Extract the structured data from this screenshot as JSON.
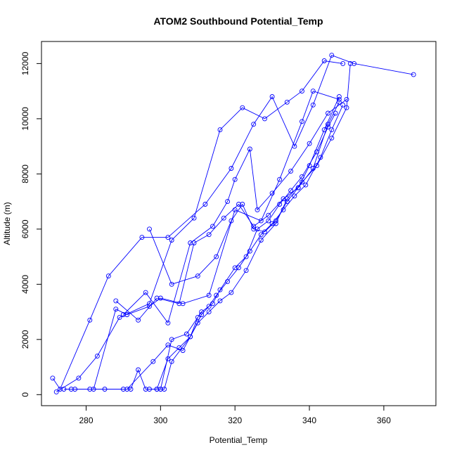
{
  "chart_data": {
    "type": "line",
    "title": "ATOM2 Southbound Potential_Temp",
    "xlabel": "Potential_Temp",
    "ylabel": "Altitude (m)",
    "xlim": [
      268,
      374
    ],
    "ylim": [
      -400,
      12800
    ],
    "xticks": [
      280,
      300,
      320,
      340,
      360
    ],
    "yticks": [
      0,
      2000,
      4000,
      6000,
      8000,
      10000,
      12000
    ],
    "xtick_labels": [
      "280",
      "300",
      "320",
      "340",
      "360"
    ],
    "ytick_labels": [
      "0",
      "2000",
      "4000",
      "6000",
      "8000",
      "10000",
      "12000"
    ],
    "grid": false,
    "legend": "none",
    "series": [
      {
        "color": "#0000ff",
        "marker": "open-circle",
        "x": [
          271,
          273,
          281,
          286,
          295,
          302,
          312,
          319,
          325,
          330,
          336,
          341,
          346,
          352,
          368
        ],
        "y": [
          600,
          200,
          2700,
          4300,
          5700,
          5700,
          6900,
          8200,
          9800,
          10800,
          9000,
          10500,
          12300,
          12000,
          11600
        ]
      },
      {
        "color": "#0000ff",
        "marker": "open-circle",
        "x": [
          272,
          278,
          283,
          289,
          297,
          303,
          309,
          316,
          322,
          328,
          334,
          338,
          344,
          349
        ],
        "y": [
          100,
          600,
          1400,
          2800,
          3300,
          5600,
          6400,
          9600,
          10400,
          10000,
          10600,
          11000,
          12100,
          12000
        ]
      },
      {
        "color": "#0000ff",
        "marker": "open-circle",
        "x": [
          274,
          277,
          282,
          288,
          291,
          297,
          300,
          306,
          313,
          320,
          327,
          332,
          338,
          341,
          348
        ],
        "y": [
          200,
          200,
          200,
          3100,
          2900,
          3200,
          3500,
          3300,
          3600,
          6700,
          6300,
          7800,
          9900,
          11000,
          10700
        ]
      },
      {
        "color": "#0000ff",
        "marker": "open-circle",
        "x": [
          276,
          281,
          285,
          290,
          292,
          294,
          296,
          297,
          299,
          300,
          301,
          303,
          308,
          310
        ],
        "y": [
          200,
          200,
          200,
          200,
          200,
          900,
          200,
          200,
          200,
          200,
          200,
          1200,
          2100,
          2800
        ]
      },
      {
        "color": "#0000ff",
        "marker": "open-circle",
        "x": [
          291,
          298,
          302,
          306,
          310,
          313,
          316,
          319,
          323,
          327,
          331,
          334,
          338,
          342,
          346,
          350,
          351
        ],
        "y": [
          200,
          1200,
          1800,
          1600,
          2600,
          3000,
          3400,
          3700,
          4500,
          5600,
          6200,
          7100,
          7700,
          8300,
          9300,
          10400,
          12000
        ]
      },
      {
        "color": "#0000ff",
        "marker": "open-circle",
        "x": [
          299,
          302,
          305,
          308,
          311,
          313,
          315,
          318,
          321,
          324,
          327,
          330,
          333,
          336,
          339,
          343,
          346,
          349
        ],
        "y": [
          200,
          1300,
          1700,
          2100,
          2900,
          3200,
          3600,
          4100,
          4600,
          5200,
          5800,
          6200,
          6700,
          7200,
          7600,
          8600,
          9600,
          10500
        ]
      },
      {
        "color": "#0000ff",
        "marker": "open-circle",
        "x": [
          300,
          303,
          307,
          311,
          314,
          316,
          320,
          323,
          326,
          329,
          332,
          335,
          338,
          342,
          345,
          347
        ],
        "y": [
          200,
          2000,
          2200,
          3000,
          3300,
          3800,
          4600,
          5000,
          6000,
          6300,
          6900,
          7400,
          7900,
          8800,
          9700,
          10200
        ]
      },
      {
        "color": "#0000ff",
        "marker": "open-circle",
        "x": [
          288,
          294,
          299,
          305,
          309,
          313,
          317,
          321,
          325,
          329,
          333,
          337,
          341,
          345,
          348
        ],
        "y": [
          3400,
          2700,
          3500,
          3300,
          5500,
          5800,
          6400,
          6900,
          6100,
          6500,
          7100,
          7500,
          8200,
          9800,
          10600
        ]
      },
      {
        "color": "#0000ff",
        "marker": "open-circle",
        "x": [
          290,
          296,
          302,
          308,
          314,
          318,
          320,
          324,
          326,
          330,
          335,
          340,
          345,
          350
        ],
        "y": [
          2900,
          3700,
          2600,
          5500,
          6100,
          7000,
          7800,
          8900,
          6700,
          7300,
          8100,
          9100,
          10200,
          10700
        ]
      },
      {
        "color": "#0000ff",
        "marker": "open-circle",
        "x": [
          297,
          303,
          310,
          315,
          319,
          322,
          325,
          328,
          331,
          334,
          337,
          340,
          344,
          348
        ],
        "y": [
          6000,
          4000,
          4300,
          5000,
          6300,
          6900,
          6000,
          5900,
          6300,
          7000,
          7500,
          8300,
          9600,
          10800
        ]
      }
    ]
  }
}
